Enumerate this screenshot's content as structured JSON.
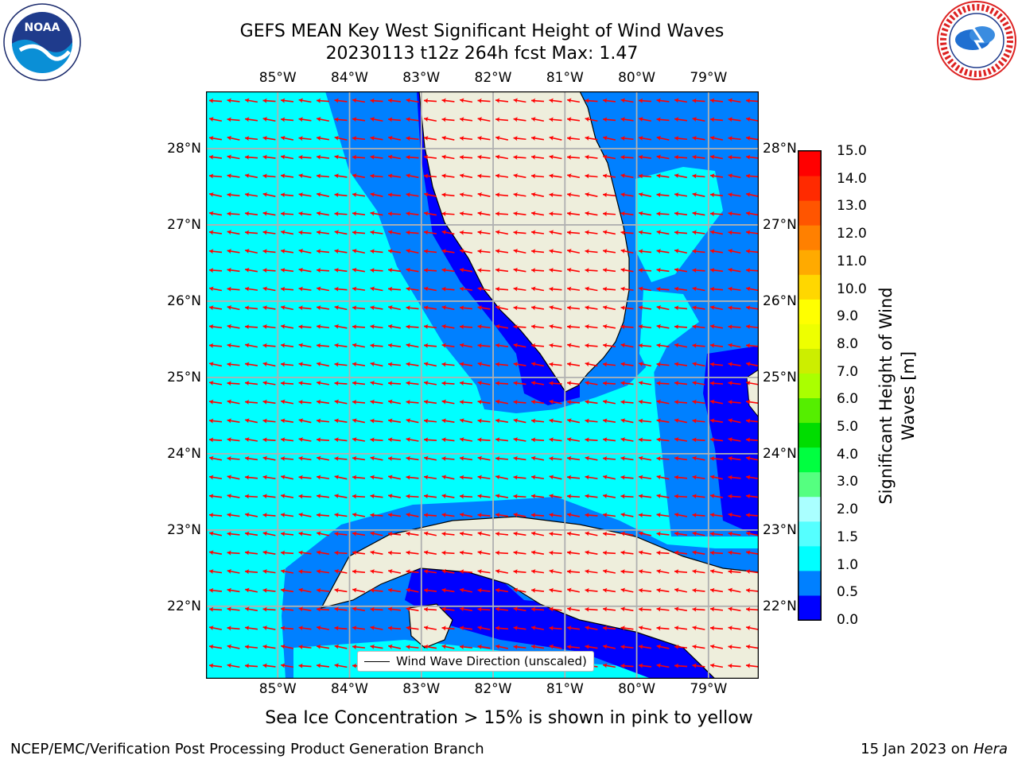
{
  "title": {
    "line1": "GEFS MEAN Key West Significant Height of Wind Waves",
    "line2": "20230113 t12z 264h fcst   Max: 1.47"
  },
  "logos": {
    "left": {
      "name": "noaa-logo",
      "text": "NOAA"
    },
    "right": {
      "name": "nws-logo",
      "text": "NATIONAL WEATHER SERVICE"
    }
  },
  "map": {
    "lon_range": [
      -86,
      -78.3
    ],
    "lat_range": [
      21.05,
      28.75
    ],
    "lon_ticks": [
      "85°W",
      "84°W",
      "83°W",
      "82°W",
      "81°W",
      "80°W",
      "79°W"
    ],
    "lat_ticks": [
      "28°N",
      "27°N",
      "26°N",
      "25°N",
      "24°N",
      "23°N",
      "22°N"
    ],
    "legend": "Wind Wave Direction (unscaled)",
    "colors": {
      "ocean_low": "#00ffff",
      "band_1": "#0080ff",
      "band_0": "#0000ff",
      "land": "#eeeedc",
      "arrow": "#ff0000",
      "grid": "#b0b0b0"
    }
  },
  "colorbar": {
    "label": "Significant Height of Wind Waves [m]",
    "ticks": [
      "15.0",
      "14.0",
      "13.0",
      "12.0",
      "11.0",
      "10.0",
      "9.0",
      "8.0",
      "7.0",
      "6.0",
      "5.0",
      "4.0",
      "3.0",
      "2.0",
      "1.5",
      "1.0",
      "0.5",
      "0.0"
    ],
    "colors": [
      "#0000ff",
      "#0080ff",
      "#00ffff",
      "#55ffff",
      "#aaffff",
      "#55ff80",
      "#00ff40",
      "#00dd00",
      "#55ee00",
      "#aaff00",
      "#ccee00",
      "#eeff00",
      "#ffff00",
      "#ffd700",
      "#ffaa00",
      "#ff8000",
      "#ff5500",
      "#ff2a00",
      "#ff0000"
    ]
  },
  "subtitle": "Sea Ice Concentration > 15% is shown in pink to yellow",
  "footer": {
    "left": "NCEP/EMC/Verification Post Processing Product Generation Branch",
    "right_prefix": "15 Jan 2023 on ",
    "right_host": "Hera"
  }
}
